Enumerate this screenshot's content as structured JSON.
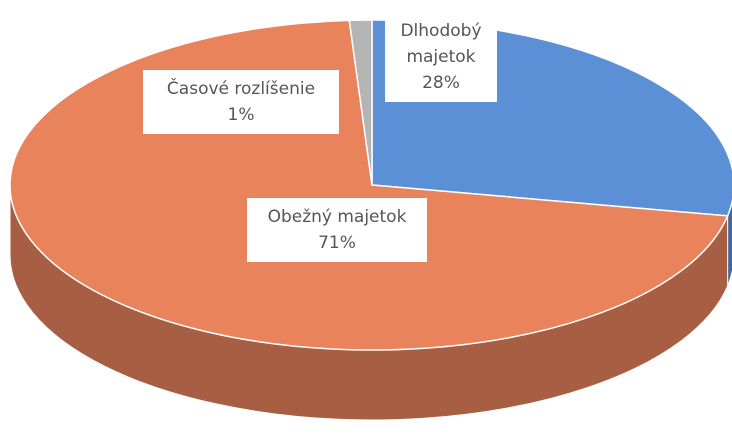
{
  "chart_data": {
    "type": "pie3d",
    "categories": [
      "Dlhodobý majetok",
      "Obežný majetok",
      "Časové rozlíšenie"
    ],
    "values": [
      28,
      71,
      1
    ],
    "value_labels": [
      "28%",
      "71%",
      "1%"
    ],
    "colors": [
      "#5b8fd6",
      "#e8835b",
      "#b4b4b4"
    ]
  }
}
